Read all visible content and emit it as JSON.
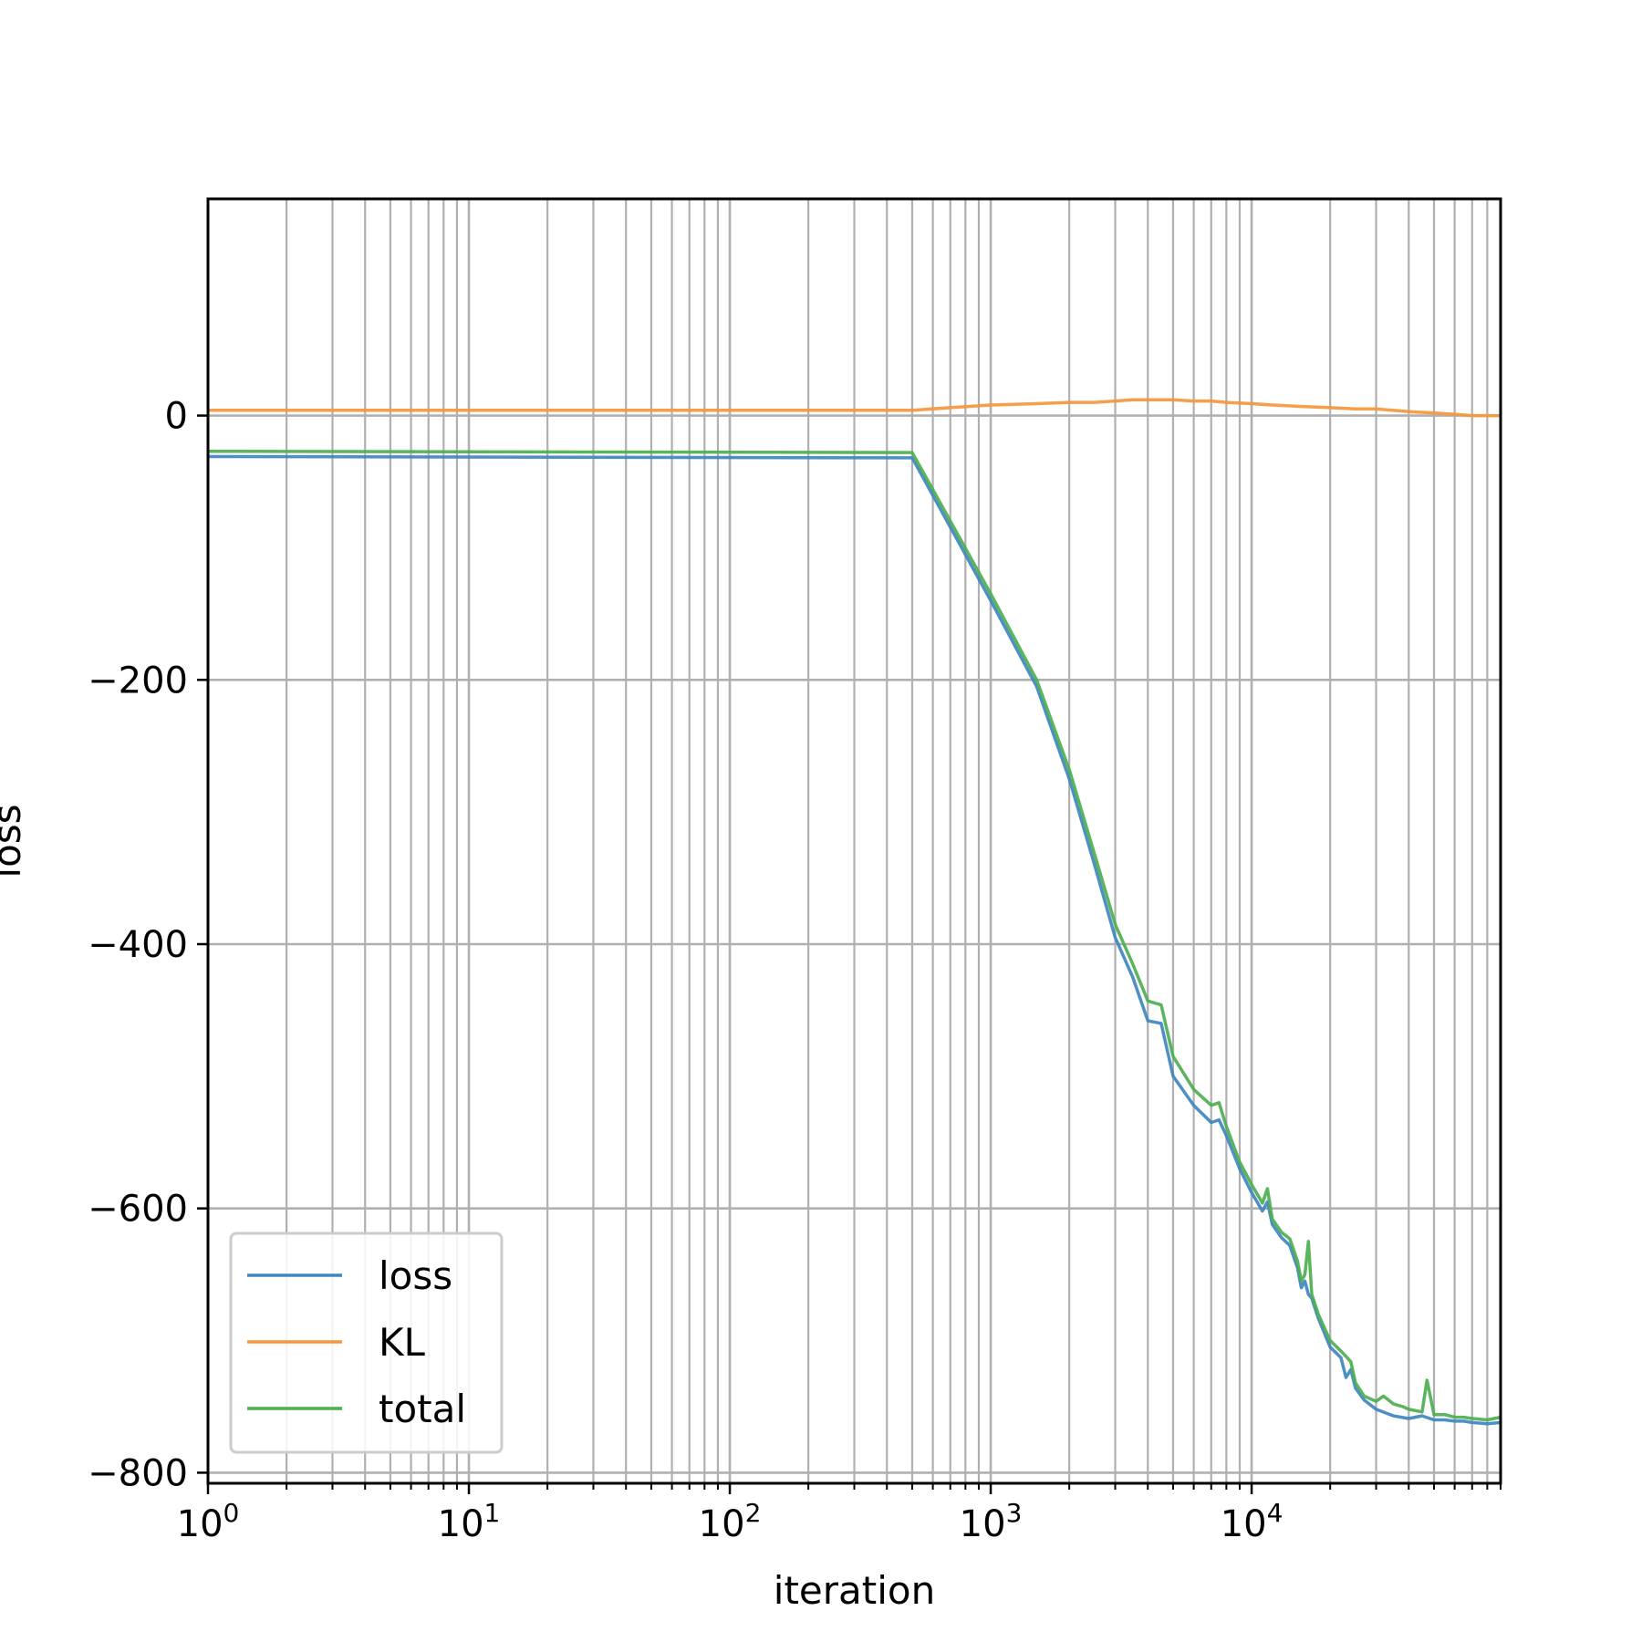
{
  "chart_data": {
    "type": "line",
    "title": "",
    "xlabel": "iteration",
    "ylabel": "loss",
    "xscale": "log",
    "xlim": [
      1,
      90000
    ],
    "ylim": [
      -808,
      164
    ],
    "grid": "major and minor",
    "legend_position": "lower-left",
    "x_ticks": [
      {
        "base": "10",
        "exp": "0"
      },
      {
        "base": "10",
        "exp": "1"
      },
      {
        "base": "10",
        "exp": "2"
      },
      {
        "base": "10",
        "exp": "3"
      },
      {
        "base": "10",
        "exp": "4"
      }
    ],
    "y_ticks": [
      "0",
      "−200",
      "−400",
      "−600",
      "−800"
    ],
    "y_tick_values": [
      0,
      -200,
      -400,
      -600,
      -800
    ],
    "series": [
      {
        "name": "loss",
        "color": "#3f86c0",
        "x": [
          1,
          500,
          1000,
          1500,
          2000,
          2500,
          3000,
          3500,
          4000,
          4500,
          5000,
          6000,
          7000,
          7500,
          8000,
          9000,
          10000,
          11000,
          11500,
          12000,
          13000,
          14000,
          15000,
          15500,
          16000,
          16500,
          17000,
          18000,
          20000,
          22000,
          23000,
          24000,
          25000,
          27000,
          30000,
          35000,
          40000,
          45000,
          50000,
          55000,
          60000,
          65000,
          70000,
          80000,
          90000
        ],
        "y": [
          -31,
          -32,
          -140,
          -205,
          -275,
          -340,
          -395,
          -425,
          -458,
          -460,
          -500,
          -522,
          -535,
          -533,
          -545,
          -570,
          -588,
          -602,
          -595,
          -612,
          -622,
          -628,
          -645,
          -660,
          -655,
          -665,
          -668,
          -683,
          -705,
          -713,
          -728,
          -722,
          -736,
          -745,
          -752,
          -757,
          -759,
          -757,
          -760,
          -760,
          -761,
          -761,
          -762,
          -763,
          -762
        ]
      },
      {
        "name": "KL",
        "color": "#f5963a",
        "x": [
          1,
          10,
          100,
          500,
          700,
          1000,
          1500,
          2000,
          2500,
          3000,
          3500,
          4000,
          4500,
          5000,
          6000,
          7000,
          8000,
          10000,
          12000,
          15000,
          20000,
          25000,
          30000,
          40000,
          50000,
          60000,
          70000,
          80000,
          90000
        ],
        "y": [
          4,
          4,
          4,
          4,
          6,
          8,
          9,
          10,
          10,
          11,
          12,
          12,
          12,
          12,
          11,
          11,
          10,
          9,
          8,
          7,
          6,
          5,
          5,
          3,
          2,
          1,
          0,
          0,
          0
        ]
      },
      {
        "name": "total",
        "color": "#4caf50",
        "x": [
          1,
          500,
          1000,
          1500,
          2000,
          2500,
          3000,
          3500,
          4000,
          4500,
          5000,
          6000,
          7000,
          7500,
          8000,
          9000,
          10000,
          11000,
          11500,
          12000,
          13000,
          14000,
          15000,
          15500,
          16000,
          16500,
          17000,
          18000,
          20000,
          22000,
          23000,
          24000,
          25000,
          27000,
          30000,
          32000,
          35000,
          38000,
          40000,
          45000,
          47000,
          50000,
          55000,
          60000,
          65000,
          70000,
          80000,
          90000
        ],
        "y": [
          -27,
          -28,
          -135,
          -200,
          -268,
          -332,
          -385,
          -415,
          -443,
          -446,
          -485,
          -510,
          -522,
          -520,
          -538,
          -565,
          -582,
          -596,
          -585,
          -608,
          -618,
          -623,
          -640,
          -655,
          -650,
          -625,
          -665,
          -680,
          -700,
          -708,
          -712,
          -716,
          -732,
          -742,
          -746,
          -742,
          -748,
          -750,
          -752,
          -754,
          -730,
          -756,
          -756,
          -758,
          -758,
          -759,
          -760,
          -758
        ]
      }
    ]
  }
}
